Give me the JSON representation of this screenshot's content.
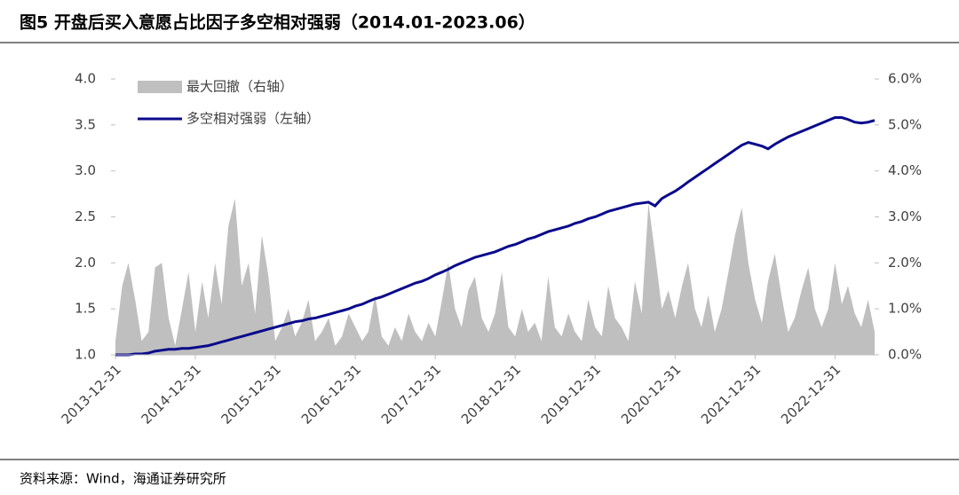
{
  "chart_data": {
    "type": "line-area",
    "title": "图5  开盘后买入意愿占比因子多空相对强弱（2014.01-2023.06）",
    "source": "资料来源：Wind，海通证券研究所",
    "x": [
      "2013-12-31",
      "2014-01-31",
      "2014-02-28",
      "2014-03-31",
      "2014-04-30",
      "2014-05-31",
      "2014-06-30",
      "2014-07-31",
      "2014-08-31",
      "2014-09-30",
      "2014-10-31",
      "2014-11-30",
      "2014-12-31",
      "2015-01-31",
      "2015-02-28",
      "2015-03-31",
      "2015-04-30",
      "2015-05-31",
      "2015-06-30",
      "2015-07-31",
      "2015-08-31",
      "2015-09-30",
      "2015-10-31",
      "2015-11-30",
      "2015-12-31",
      "2016-01-31",
      "2016-02-29",
      "2016-03-31",
      "2016-04-30",
      "2016-05-31",
      "2016-06-30",
      "2016-07-31",
      "2016-08-31",
      "2016-09-30",
      "2016-10-31",
      "2016-11-30",
      "2016-12-31",
      "2017-01-31",
      "2017-02-28",
      "2017-03-31",
      "2017-04-30",
      "2017-05-31",
      "2017-06-30",
      "2017-07-31",
      "2017-08-31",
      "2017-09-30",
      "2017-10-31",
      "2017-11-30",
      "2017-12-31",
      "2018-01-31",
      "2018-02-28",
      "2018-03-31",
      "2018-04-30",
      "2018-05-31",
      "2018-06-30",
      "2018-07-31",
      "2018-08-31",
      "2018-09-30",
      "2018-10-31",
      "2018-11-30",
      "2018-12-31",
      "2019-01-31",
      "2019-02-28",
      "2019-03-31",
      "2019-04-30",
      "2019-05-31",
      "2019-06-30",
      "2019-07-31",
      "2019-08-31",
      "2019-09-30",
      "2019-10-31",
      "2019-11-30",
      "2019-12-31",
      "2020-01-31",
      "2020-02-29",
      "2020-03-31",
      "2020-04-30",
      "2020-05-31",
      "2020-06-30",
      "2020-07-31",
      "2020-08-31",
      "2020-09-30",
      "2020-10-31",
      "2020-11-30",
      "2020-12-31",
      "2021-01-31",
      "2021-02-28",
      "2021-03-31",
      "2021-04-30",
      "2021-05-31",
      "2021-06-30",
      "2021-07-31",
      "2021-08-31",
      "2021-09-30",
      "2021-10-31",
      "2021-11-30",
      "2021-12-31",
      "2022-01-31",
      "2022-02-28",
      "2022-03-31",
      "2022-04-30",
      "2022-05-31",
      "2022-06-30",
      "2022-07-31",
      "2022-08-31",
      "2022-09-30",
      "2022-10-31",
      "2022-11-30",
      "2022-12-31",
      "2023-01-31",
      "2023-02-28",
      "2023-03-31",
      "2023-04-30",
      "2023-05-31",
      "2023-06-30"
    ],
    "series": [
      {
        "name": "最大回撤（右轴）",
        "color": "#bfbfbf",
        "kind": "area",
        "axis": "y2",
        "values": [
          0.3,
          1.5,
          2.0,
          1.2,
          0.3,
          0.5,
          1.9,
          2.0,
          0.8,
          0.2,
          1.0,
          1.8,
          0.5,
          1.6,
          0.8,
          2.0,
          1.1,
          2.8,
          3.4,
          1.5,
          2.0,
          0.9,
          2.6,
          1.7,
          0.3,
          0.6,
          1.0,
          0.4,
          0.7,
          1.2,
          0.3,
          0.5,
          0.8,
          0.2,
          0.4,
          0.9,
          0.6,
          0.3,
          0.5,
          1.3,
          0.4,
          0.2,
          0.6,
          0.3,
          0.9,
          0.5,
          0.3,
          0.7,
          0.4,
          1.2,
          2.0,
          1.0,
          0.6,
          1.4,
          1.7,
          0.8,
          0.5,
          0.9,
          1.8,
          0.6,
          0.4,
          1.0,
          0.5,
          0.7,
          0.3,
          1.7,
          0.6,
          0.4,
          0.9,
          0.5,
          0.3,
          1.2,
          0.6,
          0.4,
          1.5,
          0.8,
          0.6,
          0.3,
          1.6,
          0.9,
          3.3,
          2.2,
          1.0,
          1.4,
          0.8,
          1.5,
          2.0,
          1.0,
          0.6,
          1.3,
          0.5,
          1.0,
          1.8,
          2.6,
          3.2,
          2.0,
          1.2,
          0.7,
          1.6,
          2.2,
          1.3,
          0.5,
          0.8,
          1.4,
          1.9,
          1.0,
          0.6,
          1.0,
          2.0,
          1.1,
          1.5,
          0.9,
          0.6,
          1.2,
          0.5
        ]
      },
      {
        "name": "多空相对强弱（左轴）",
        "color": "#0a0a8c",
        "kind": "line",
        "values": [
          1.0,
          1.0,
          1.0,
          1.01,
          1.01,
          1.02,
          1.04,
          1.05,
          1.06,
          1.06,
          1.07,
          1.07,
          1.08,
          1.09,
          1.1,
          1.12,
          1.14,
          1.16,
          1.18,
          1.2,
          1.22,
          1.24,
          1.26,
          1.28,
          1.3,
          1.32,
          1.34,
          1.36,
          1.37,
          1.39,
          1.4,
          1.42,
          1.44,
          1.46,
          1.48,
          1.5,
          1.53,
          1.55,
          1.58,
          1.61,
          1.63,
          1.66,
          1.69,
          1.72,
          1.75,
          1.78,
          1.8,
          1.83,
          1.87,
          1.9,
          1.93,
          1.97,
          2.0,
          2.03,
          2.06,
          2.08,
          2.1,
          2.12,
          2.15,
          2.18,
          2.2,
          2.23,
          2.26,
          2.28,
          2.31,
          2.34,
          2.36,
          2.38,
          2.4,
          2.43,
          2.45,
          2.48,
          2.5,
          2.53,
          2.56,
          2.58,
          2.6,
          2.62,
          2.64,
          2.65,
          2.66,
          2.62,
          2.7,
          2.74,
          2.78,
          2.83,
          2.88,
          2.93,
          2.98,
          3.03,
          3.08,
          3.13,
          3.18,
          3.23,
          3.28,
          3.31,
          3.29,
          3.27,
          3.24,
          3.29,
          3.33,
          3.37,
          3.4,
          3.43,
          3.46,
          3.49,
          3.52,
          3.55,
          3.58,
          3.58,
          3.56,
          3.53,
          3.52,
          3.53,
          3.55
        ]
      }
    ],
    "xlim": [
      "2013-12-31",
      "2023-06-30"
    ],
    "xticks": [
      "2013-12-31",
      "2014-12-31",
      "2015-12-31",
      "2016-12-31",
      "2017-12-31",
      "2018-12-31",
      "2019-12-31",
      "2020-12-31",
      "2021-12-31",
      "2022-12-31"
    ],
    "ylim": [
      1.0,
      4.0
    ],
    "yticks": [
      {
        "value": 1.0,
        "label": "1.0"
      },
      {
        "value": 1.5,
        "label": "1.5"
      },
      {
        "value": 2.0,
        "label": "2.0"
      },
      {
        "value": 2.5,
        "label": "2.5"
      },
      {
        "value": 3.0,
        "label": "3.0"
      },
      {
        "value": 3.5,
        "label": "3.5"
      },
      {
        "value": 4.0,
        "label": "4.0"
      }
    ],
    "y2lim": [
      0,
      6
    ],
    "y2ticks": [
      {
        "value": 0,
        "label": "0.0%"
      },
      {
        "value": 1,
        "label": "1.0%"
      },
      {
        "value": 2,
        "label": "2.0%"
      },
      {
        "value": 3,
        "label": "3.0%"
      },
      {
        "value": 4,
        "label": "4.0%"
      },
      {
        "value": 5,
        "label": "5.0%"
      },
      {
        "value": 6,
        "label": "6.0%"
      }
    ],
    "legend": "top-left"
  }
}
